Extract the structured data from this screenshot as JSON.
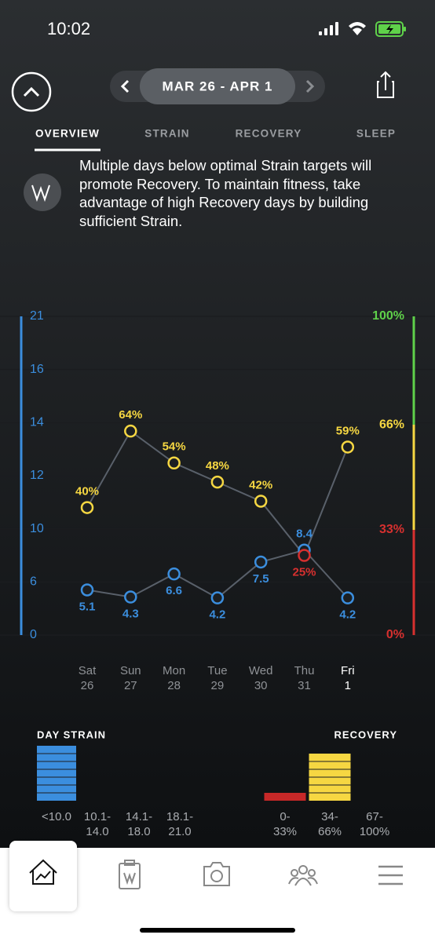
{
  "status_bar": {
    "time": "10:02"
  },
  "header": {
    "date_range": "MAR 26 - APR 1"
  },
  "tabs": [
    "OVERVIEW",
    "STRAIN",
    "RECOVERY",
    "SLEEP"
  ],
  "insight": "Multiple days below optimal Strain targets will promote Recovery. To maintain fitness, take advantage of high Recovery days by building sufficient Strain.",
  "chart_data": {
    "type": "line",
    "categories": [
      "Sat",
      "Sun",
      "Mon",
      "Tue",
      "Wed",
      "Thu",
      "Fri"
    ],
    "dates": [
      "26",
      "27",
      "28",
      "29",
      "30",
      "31",
      "1"
    ],
    "series": [
      {
        "color": "#3b8ede",
        "values": [
          5.1,
          4.3,
          6.6,
          4.2,
          7.5,
          8.4,
          4.2
        ]
      },
      {
        "axis": "y2",
        "values": [
          40,
          64,
          54,
          48,
          42,
          25,
          59
        ],
        "value_labels": [
          "40%",
          "64%",
          "54%",
          "48%",
          "42%",
          "25%",
          "59%"
        ]
      }
    ],
    "line_color": "#59606a",
    "ylim": [
      0,
      21
    ],
    "yticks": [
      0,
      6,
      10,
      12,
      14,
      16,
      21
    ],
    "y2lim": [
      0,
      100
    ],
    "y2ticks": [
      {
        "value": 0,
        "label": "0%",
        "color": "#d7302f"
      },
      {
        "value": 33,
        "label": "33%",
        "color": "#d7302f"
      },
      {
        "value": 66,
        "label": "66%",
        "color": "#f6d742"
      },
      {
        "value": 100,
        "label": "100%",
        "color": "#5fd14a"
      }
    ]
  },
  "distribution": {
    "day_strain": {
      "title": "DAY STRAIN",
      "color": "#3b8ede",
      "bins": [
        [
          "<10.0"
        ],
        [
          "10.1-",
          "14.0"
        ],
        [
          "14.1-",
          "18.0"
        ],
        [
          "18.1-",
          "21.0"
        ]
      ],
      "counts": [
        7,
        0,
        0,
        0
      ]
    },
    "recovery": {
      "title": "RECOVERY",
      "colors": [
        "#c62828",
        "#f6d742",
        "#5fd14a"
      ],
      "bins": [
        [
          "0-",
          "33%"
        ],
        [
          "34-",
          "66%"
        ],
        [
          "67-",
          "100%"
        ]
      ],
      "counts": [
        1,
        6,
        0
      ]
    }
  }
}
